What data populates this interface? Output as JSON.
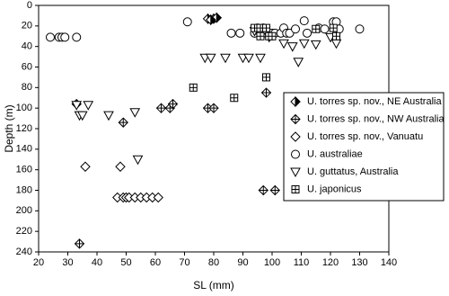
{
  "chart_data": {
    "type": "scatter",
    "x_label": "SL (mm)",
    "y_label": "Depth (m)",
    "xlim": [
      20,
      140
    ],
    "xticks": [
      20,
      30,
      40,
      50,
      60,
      70,
      80,
      90,
      100,
      110,
      120,
      130,
      140
    ],
    "ylim": [
      240,
      0
    ],
    "yticks": [
      0,
      20,
      40,
      60,
      80,
      100,
      120,
      140,
      160,
      180,
      200,
      220,
      240
    ],
    "series": [
      {
        "name": "U. torres sp. nov., NE Australia",
        "marker": "diamond-half",
        "color": "#000000",
        "x": [
          78,
          80,
          81,
          79
        ],
        "y": [
          13,
          13,
          12,
          14
        ]
      },
      {
        "name": "U. torres sp. nov., NW Australia",
        "marker": "diamond-cross",
        "color": "#000000",
        "x": [
          33,
          34,
          49,
          62,
          65,
          66,
          78,
          80,
          98,
          97,
          101
        ],
        "y": [
          96,
          232,
          114,
          100,
          100,
          96,
          100,
          100,
          85,
          180,
          180
        ]
      },
      {
        "name": "U. torres sp. nov., Vanuatu",
        "marker": "diamond",
        "color": "#000000",
        "x": [
          36,
          48,
          47,
          49,
          50,
          51,
          53,
          55,
          57,
          59,
          61
        ],
        "y": [
          157,
          157,
          187,
          187,
          187,
          187,
          187,
          187,
          187,
          187,
          187
        ]
      },
      {
        "name": "U. australiae",
        "marker": "circle",
        "color": "#000000",
        "x": [
          24,
          27,
          28,
          29,
          33,
          71,
          86,
          89,
          94,
          95,
          96,
          97,
          98,
          100,
          101,
          103,
          104,
          105,
          106,
          108,
          111,
          112,
          116,
          118,
          121,
          122,
          123,
          130
        ],
        "y": [
          31,
          31,
          31,
          31,
          31,
          16,
          27,
          27,
          27,
          22,
          27,
          22,
          27,
          27,
          27,
          27,
          22,
          27,
          27,
          23,
          15,
          27,
          22,
          23,
          16,
          16,
          23,
          23
        ]
      },
      {
        "name": "U. guttatus, Australia",
        "marker": "triangle-down",
        "color": "#000000",
        "x": [
          33,
          34,
          35,
          37,
          44,
          53,
          54,
          77,
          79,
          84,
          90,
          92,
          94,
          96,
          99,
          104,
          107,
          109,
          111,
          115,
          120,
          122
        ],
        "y": [
          97,
          107,
          107,
          97,
          107,
          104,
          150,
          51,
          51,
          51,
          51,
          51,
          25,
          51,
          31,
          37,
          40,
          55,
          37,
          38,
          31,
          37
        ]
      },
      {
        "name": "U. japonicus",
        "marker": "square-cross",
        "color": "#000000",
        "x": [
          73,
          87,
          94,
          96,
          98,
          99,
          98,
          100,
          115,
          121,
          122,
          96
        ],
        "y": [
          80,
          90,
          22,
          22,
          22,
          30,
          70,
          30,
          23,
          22,
          30,
          30
        ]
      }
    ]
  }
}
